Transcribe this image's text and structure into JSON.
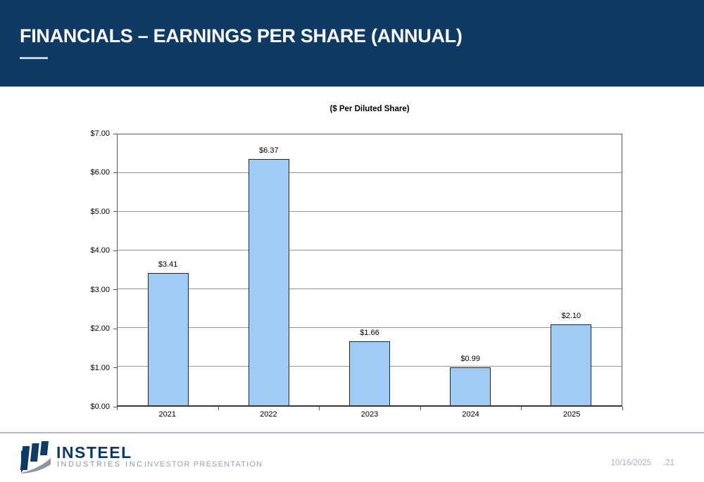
{
  "header": {
    "title": "FINANCIALS – EARNINGS PER SHARE (ANNUAL)"
  },
  "chart_data": {
    "type": "bar",
    "title": "($ Per Diluted Share)",
    "categories": [
      "2021",
      "2022",
      "2023",
      "2024",
      "2025"
    ],
    "values": [
      3.41,
      6.37,
      1.66,
      0.99,
      2.1
    ],
    "value_labels": [
      "$3.41",
      "$6.37",
      "$1.66",
      "$0.99",
      "$2.10"
    ],
    "xlabel": "",
    "ylabel": "",
    "ylim": [
      0,
      7
    ],
    "ytick_step": 1,
    "ytick_labels": [
      "$0.00",
      "$1.00",
      "$2.00",
      "$3.00",
      "$4.00",
      "$5.00",
      "$6.00",
      "$7.00"
    ],
    "grid": true,
    "legend": "none",
    "bar_fill_color": "#9fcbf5",
    "bar_border_color": "#262626"
  },
  "footer": {
    "brand": "INSTEEL",
    "brand_sub": "INDUSTRIES INC.",
    "deck_title": "INVESTOR PRESENTATION",
    "date": "10/16/2025",
    "page": ".21",
    "logo_icon": "insteel-bars-swoosh-logo"
  },
  "colors": {
    "header_navy": "#0e3a63",
    "bar_fill": "#9fcbf5",
    "gridline": "#969696",
    "footer_gray": "#8a94a0"
  }
}
